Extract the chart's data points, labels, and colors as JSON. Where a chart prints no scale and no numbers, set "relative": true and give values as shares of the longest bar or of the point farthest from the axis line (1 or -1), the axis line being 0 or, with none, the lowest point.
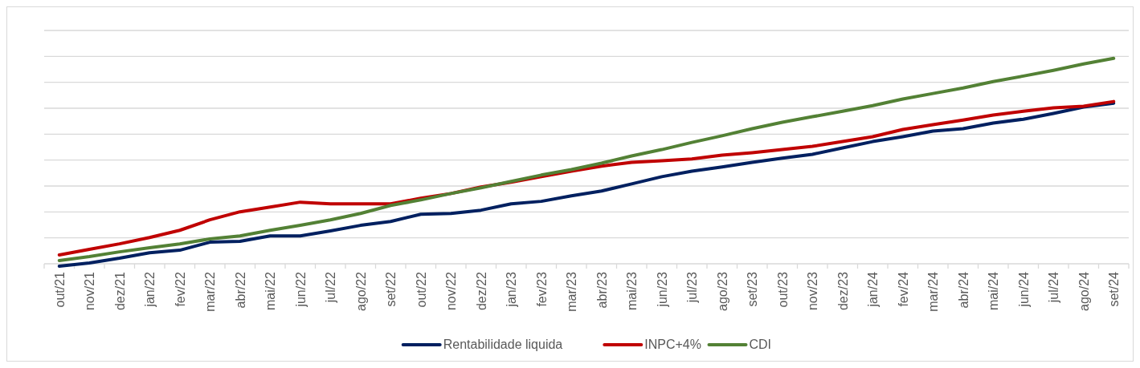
{
  "chart_data": {
    "type": "line",
    "relative": true,
    "grid": "y",
    "legend": "bottom",
    "line_style": "solid",
    "marker": "none",
    "categories": [
      "out/21",
      "nov/21",
      "dez/21",
      "jan/22",
      "fev/22",
      "mar/22",
      "abr/22",
      "mai/22",
      "jun/22",
      "jul/22",
      "ago/22",
      "set/22",
      "out/22",
      "nov/22",
      "dez/22",
      "jan/23",
      "fev/23",
      "mar/23",
      "abr/23",
      "mai/23",
      "jun/23",
      "jul/23",
      "ago/23",
      "set/23",
      "out/23",
      "nov/23",
      "dez/23",
      "jan/24",
      "fev/24",
      "mar/24",
      "abr/24",
      "mai/24",
      "jun/24",
      "jul/24",
      "ago/24",
      "set/24"
    ],
    "series": [
      {
        "name": "Rentabilidade liquida",
        "color": "#002060",
        "values": [
          -0.012,
          0.004,
          0.027,
          0.054,
          0.066,
          0.105,
          0.109,
          0.136,
          0.136,
          0.16,
          0.187,
          0.206,
          0.241,
          0.245,
          0.261,
          0.292,
          0.304,
          0.331,
          0.354,
          0.389,
          0.424,
          0.451,
          0.471,
          0.494,
          0.514,
          0.533,
          0.564,
          0.595,
          0.619,
          0.646,
          0.658,
          0.685,
          0.704,
          0.732,
          0.763,
          0.782
        ]
      },
      {
        "name": "INPC+4%",
        "color": "#c00000",
        "values": [
          0.043,
          0.07,
          0.097,
          0.128,
          0.163,
          0.214,
          0.253,
          0.276,
          0.3,
          0.292,
          0.292,
          0.292,
          0.319,
          0.342,
          0.374,
          0.397,
          0.424,
          0.451,
          0.475,
          0.494,
          0.502,
          0.51,
          0.529,
          0.541,
          0.556,
          0.572,
          0.595,
          0.619,
          0.654,
          0.677,
          0.7,
          0.724,
          0.743,
          0.759,
          0.767,
          0.79
        ]
      },
      {
        "name": "CDI",
        "color": "#538135",
        "values": [
          0.016,
          0.035,
          0.058,
          0.078,
          0.097,
          0.121,
          0.136,
          0.163,
          0.187,
          0.214,
          0.245,
          0.284,
          0.311,
          0.342,
          0.37,
          0.401,
          0.432,
          0.459,
          0.49,
          0.525,
          0.556,
          0.591,
          0.623,
          0.658,
          0.689,
          0.716,
          0.743,
          0.77,
          0.802,
          0.829,
          0.856,
          0.887,
          0.914,
          0.942,
          0.973,
          1
        ]
      }
    ]
  }
}
